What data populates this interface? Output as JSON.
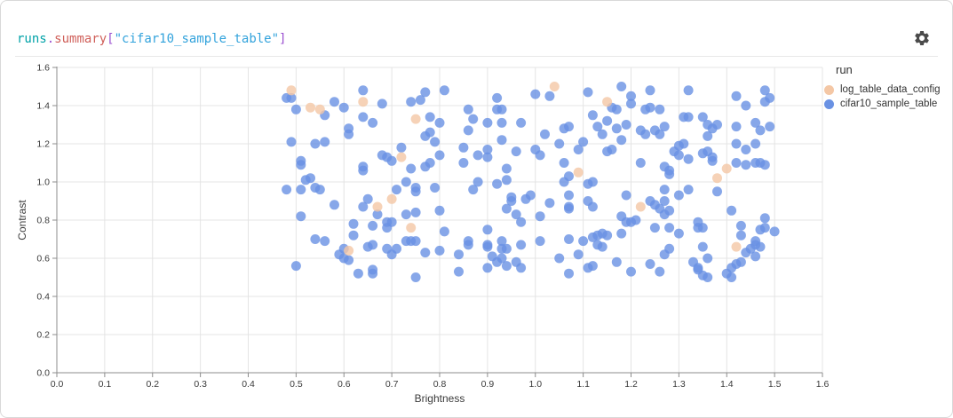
{
  "panel": {
    "title_parts": [
      {
        "text": "runs",
        "color": "#00a2a8"
      },
      {
        "text": ".",
        "color": "#9b51d0"
      },
      {
        "text": "summary",
        "color": "#d0605a"
      },
      {
        "text": "[",
        "color": "#9b51d0"
      },
      {
        "text": "\"cifar10_sample_table\"",
        "color": "#33a3dc"
      },
      {
        "text": "]",
        "color": "#9b51d0"
      }
    ],
    "gear_icon": "settings-gear",
    "gear_color": "#4b4b4b"
  },
  "colors": {
    "grid": "#e4e4e4",
    "axis": "#8c8c8c",
    "tick_text": "#3b3b3b",
    "border": "#d9d9d9"
  },
  "chart_data": {
    "type": "scatter",
    "title": "runs.summary[\"cifar10_sample_table\"]",
    "xlabel": "Brightness",
    "ylabel": "Contrast",
    "xlim": [
      0,
      1.6
    ],
    "ylim": [
      0,
      1.6
    ],
    "xticks": [
      0,
      0.1,
      0.2,
      0.3,
      0.4,
      0.5,
      0.6,
      0.7,
      0.8,
      0.9,
      1,
      1.1,
      1.2,
      1.3,
      1.4,
      1.5,
      1.6
    ],
    "yticks": [
      0,
      0.2,
      0.4,
      0.6,
      0.8,
      1,
      1.2,
      1.4,
      1.6
    ],
    "grid": true,
    "legend_position": "right",
    "legend_title": "run",
    "point_radius": 5.5,
    "point_opacity": 0.8,
    "series": [
      {
        "name": "log_table_data_config",
        "color": "#f4c7a5",
        "points": [
          [
            0.49,
            1.48
          ],
          [
            0.53,
            1.39
          ],
          [
            0.55,
            1.38
          ],
          [
            0.64,
            1.42
          ],
          [
            0.75,
            1.33
          ],
          [
            0.72,
            1.13
          ],
          [
            1.04,
            1.5
          ],
          [
            1.15,
            1.42
          ],
          [
            1.09,
            1.05
          ],
          [
            1.4,
            1.07
          ],
          [
            1.38,
            1.02
          ],
          [
            0.67,
            0.87
          ],
          [
            0.7,
            0.91
          ],
          [
            0.74,
            0.76
          ],
          [
            0.61,
            0.64
          ],
          [
            1.22,
            0.87
          ],
          [
            1.42,
            0.66
          ]
        ]
      },
      {
        "name": "cifar10_sample_table",
        "color": "#6991e3",
        "points": [
          [
            0.48,
            1.44
          ],
          [
            0.49,
            1.44
          ],
          [
            0.5,
            1.38
          ],
          [
            0.56,
            1.35
          ],
          [
            0.58,
            1.42
          ],
          [
            0.6,
            1.39
          ],
          [
            0.64,
            1.48
          ],
          [
            0.68,
            1.41
          ],
          [
            0.64,
            1.34
          ],
          [
            0.66,
            1.31
          ],
          [
            0.61,
            1.28
          ],
          [
            0.61,
            1.25
          ],
          [
            0.74,
            1.42
          ],
          [
            0.77,
            1.47
          ],
          [
            0.81,
            1.48
          ],
          [
            0.76,
            1.43
          ],
          [
            0.78,
            1.34
          ],
          [
            0.8,
            1.31
          ],
          [
            0.78,
            1.26
          ],
          [
            0.77,
            1.24
          ],
          [
            0.79,
            1.21
          ],
          [
            0.49,
            1.21
          ],
          [
            0.54,
            1.2
          ],
          [
            0.56,
            1.21
          ],
          [
            0.72,
            1.18
          ],
          [
            0.68,
            1.14
          ],
          [
            0.69,
            1.13
          ],
          [
            0.7,
            1.11
          ],
          [
            0.64,
            1.08
          ],
          [
            0.64,
            1.06
          ],
          [
            0.51,
            1.11
          ],
          [
            0.51,
            1.09
          ],
          [
            0.53,
            1.02
          ],
          [
            0.74,
            1.07
          ],
          [
            0.77,
            1.08
          ],
          [
            0.78,
            1.1
          ],
          [
            0.8,
            1.14
          ],
          [
            0.85,
            1.18
          ],
          [
            0.85,
            1.1
          ],
          [
            1.0,
            1.46
          ],
          [
            1.03,
            1.45
          ],
          [
            0.92,
            1.44
          ],
          [
            0.92,
            1.38
          ],
          [
            0.93,
            1.38
          ],
          [
            0.86,
            1.38
          ],
          [
            0.87,
            1.33
          ],
          [
            0.86,
            1.27
          ],
          [
            0.9,
            1.31
          ],
          [
            0.93,
            1.31
          ],
          [
            0.97,
            1.31
          ],
          [
            0.93,
            1.22
          ],
          [
            1.11,
            1.47
          ],
          [
            1.18,
            1.5
          ],
          [
            1.2,
            1.45
          ],
          [
            1.2,
            1.41
          ],
          [
            1.16,
            1.39
          ],
          [
            1.17,
            1.38
          ],
          [
            1.12,
            1.35
          ],
          [
            1.13,
            1.29
          ],
          [
            1.15,
            1.32
          ],
          [
            1.14,
            1.25
          ],
          [
            1.17,
            1.28
          ],
          [
            1.19,
            1.3
          ],
          [
            1.23,
            1.38
          ],
          [
            1.22,
            1.27
          ],
          [
            1.23,
            1.25
          ],
          [
            1.06,
            1.28
          ],
          [
            1.07,
            1.29
          ],
          [
            1.02,
            1.25
          ],
          [
            1.05,
            1.2
          ],
          [
            1.1,
            1.21
          ],
          [
            1.09,
            1.17
          ],
          [
            1.0,
            1.17
          ],
          [
            1.01,
            1.14
          ],
          [
            0.9,
            1.17
          ],
          [
            0.9,
            1.13
          ],
          [
            0.88,
            1.14
          ],
          [
            0.96,
            1.16
          ],
          [
            0.94,
            1.07
          ],
          [
            1.06,
            1.1
          ],
          [
            1.07,
            1.03
          ],
          [
            1.15,
            1.16
          ],
          [
            1.16,
            1.17
          ],
          [
            1.18,
            1.22
          ],
          [
            1.22,
            1.1
          ],
          [
            1.24,
            1.48
          ],
          [
            1.32,
            1.48
          ],
          [
            1.42,
            1.45
          ],
          [
            1.44,
            1.4
          ],
          [
            1.48,
            1.48
          ],
          [
            1.49,
            1.44
          ],
          [
            1.48,
            1.42
          ],
          [
            1.24,
            1.39
          ],
          [
            1.26,
            1.38
          ],
          [
            1.25,
            1.27
          ],
          [
            1.26,
            1.25
          ],
          [
            1.27,
            1.29
          ],
          [
            1.31,
            1.34
          ],
          [
            1.32,
            1.34
          ],
          [
            1.35,
            1.34
          ],
          [
            1.36,
            1.3
          ],
          [
            1.38,
            1.3
          ],
          [
            1.37,
            1.28
          ],
          [
            1.36,
            1.24
          ],
          [
            1.42,
            1.29
          ],
          [
            1.42,
            1.2
          ],
          [
            1.44,
            1.17
          ],
          [
            1.46,
            1.31
          ],
          [
            1.47,
            1.27
          ],
          [
            1.49,
            1.29
          ],
          [
            1.46,
            1.2
          ],
          [
            1.3,
            1.19
          ],
          [
            1.31,
            1.2
          ],
          [
            1.29,
            1.16
          ],
          [
            1.3,
            1.14
          ],
          [
            1.32,
            1.12
          ],
          [
            1.35,
            1.15
          ],
          [
            1.36,
            1.16
          ],
          [
            1.37,
            1.13
          ],
          [
            1.37,
            1.11
          ],
          [
            1.27,
            1.08
          ],
          [
            1.28,
            1.06
          ],
          [
            1.28,
            1.04
          ],
          [
            1.42,
            1.1
          ],
          [
            1.44,
            1.09
          ],
          [
            1.46,
            1.1
          ],
          [
            1.47,
            1.1
          ],
          [
            1.48,
            1.09
          ],
          [
            0.51,
            0.96
          ],
          [
            0.54,
            0.97
          ],
          [
            0.55,
            0.96
          ],
          [
            0.52,
            1.01
          ],
          [
            0.48,
            0.96
          ],
          [
            0.58,
            0.88
          ],
          [
            0.51,
            0.82
          ],
          [
            0.64,
            0.87
          ],
          [
            0.65,
            0.91
          ],
          [
            0.67,
            0.83
          ],
          [
            0.71,
            0.96
          ],
          [
            0.73,
            1.0
          ],
          [
            0.75,
            0.97
          ],
          [
            0.75,
            0.95
          ],
          [
            0.79,
            0.97
          ],
          [
            0.73,
            0.83
          ],
          [
            0.75,
            0.84
          ],
          [
            0.8,
            0.85
          ],
          [
            0.62,
            0.78
          ],
          [
            0.66,
            0.77
          ],
          [
            0.69,
            0.79
          ],
          [
            0.7,
            0.79
          ],
          [
            0.69,
            0.76
          ],
          [
            0.81,
            0.74
          ],
          [
            0.54,
            0.7
          ],
          [
            0.56,
            0.69
          ],
          [
            0.62,
            0.72
          ],
          [
            0.6,
            0.65
          ],
          [
            0.65,
            0.66
          ],
          [
            0.66,
            0.67
          ],
          [
            0.69,
            0.65
          ],
          [
            0.7,
            0.62
          ],
          [
            0.71,
            0.65
          ],
          [
            0.73,
            0.69
          ],
          [
            0.74,
            0.69
          ],
          [
            0.75,
            0.69
          ],
          [
            0.59,
            0.62
          ],
          [
            0.6,
            0.6
          ],
          [
            0.61,
            0.59
          ],
          [
            0.5,
            0.56
          ],
          [
            0.63,
            0.52
          ],
          [
            0.66,
            0.52
          ],
          [
            0.66,
            0.54
          ],
          [
            0.75,
            0.5
          ],
          [
            0.84,
            0.53
          ],
          [
            0.84,
            0.62
          ],
          [
            0.8,
            0.64
          ],
          [
            0.77,
            0.63
          ],
          [
            0.87,
            0.96
          ],
          [
            0.88,
            1.0
          ],
          [
            0.92,
            0.99
          ],
          [
            0.94,
            1.01
          ],
          [
            0.95,
            0.9
          ],
          [
            0.95,
            0.92
          ],
          [
            0.94,
            0.86
          ],
          [
            0.96,
            0.83
          ],
          [
            0.99,
            0.93
          ],
          [
            0.98,
            0.91
          ],
          [
            1.01,
            0.82
          ],
          [
            1.03,
            0.89
          ],
          [
            1.06,
            1.0
          ],
          [
            1.07,
            0.93
          ],
          [
            1.07,
            0.87
          ],
          [
            1.07,
            0.86
          ],
          [
            1.11,
            0.99
          ],
          [
            1.12,
            1.0
          ],
          [
            1.11,
            0.9
          ],
          [
            1.12,
            0.87
          ],
          [
            0.97,
            0.79
          ],
          [
            0.9,
            0.75
          ],
          [
            0.86,
            0.69
          ],
          [
            0.86,
            0.67
          ],
          [
            0.9,
            0.66
          ],
          [
            0.9,
            0.67
          ],
          [
            0.93,
            0.69
          ],
          [
            0.94,
            0.65
          ],
          [
            0.93,
            0.65
          ],
          [
            0.97,
            0.67
          ],
          [
            1.01,
            0.69
          ],
          [
            1.07,
            0.7
          ],
          [
            1.1,
            0.69
          ],
          [
            1.12,
            0.71
          ],
          [
            1.13,
            0.72
          ],
          [
            1.14,
            0.73
          ],
          [
            1.15,
            0.72
          ],
          [
            1.13,
            0.67
          ],
          [
            1.14,
            0.66
          ],
          [
            1.18,
            0.82
          ],
          [
            1.19,
            0.79
          ],
          [
            1.2,
            0.79
          ],
          [
            1.21,
            0.8
          ],
          [
            1.19,
            0.93
          ],
          [
            1.18,
            0.73
          ],
          [
            0.91,
            0.61
          ],
          [
            0.92,
            0.58
          ],
          [
            0.93,
            0.6
          ],
          [
            0.94,
            0.56
          ],
          [
            0.96,
            0.58
          ],
          [
            0.97,
            0.55
          ],
          [
            0.9,
            0.55
          ],
          [
            1.05,
            0.6
          ],
          [
            1.09,
            0.62
          ],
          [
            1.11,
            0.55
          ],
          [
            1.12,
            0.56
          ],
          [
            1.07,
            0.52
          ],
          [
            1.17,
            0.58
          ],
          [
            1.2,
            0.53
          ],
          [
            1.27,
            0.96
          ],
          [
            1.32,
            0.96
          ],
          [
            1.3,
            0.93
          ],
          [
            1.38,
            0.95
          ],
          [
            1.24,
            0.9
          ],
          [
            1.25,
            0.88
          ],
          [
            1.27,
            0.9
          ],
          [
            1.26,
            0.86
          ],
          [
            1.27,
            0.83
          ],
          [
            1.28,
            0.85
          ],
          [
            1.41,
            0.85
          ],
          [
            1.25,
            0.76
          ],
          [
            1.28,
            0.76
          ],
          [
            1.3,
            0.73
          ],
          [
            1.34,
            0.79
          ],
          [
            1.34,
            0.76
          ],
          [
            1.35,
            0.76
          ],
          [
            1.43,
            0.77
          ],
          [
            1.43,
            0.72
          ],
          [
            1.48,
            0.81
          ],
          [
            1.48,
            0.76
          ],
          [
            1.47,
            0.75
          ],
          [
            1.5,
            0.74
          ],
          [
            1.44,
            0.63
          ],
          [
            1.45,
            0.65
          ],
          [
            1.46,
            0.67
          ],
          [
            1.46,
            0.69
          ],
          [
            1.47,
            0.66
          ],
          [
            1.46,
            0.61
          ],
          [
            1.35,
            0.66
          ],
          [
            1.36,
            0.6
          ],
          [
            1.28,
            0.65
          ],
          [
            1.27,
            0.62
          ],
          [
            1.33,
            0.58
          ],
          [
            1.34,
            0.55
          ],
          [
            1.34,
            0.54
          ],
          [
            1.24,
            0.57
          ],
          [
            1.26,
            0.53
          ],
          [
            1.35,
            0.51
          ],
          [
            1.36,
            0.5
          ],
          [
            1.41,
            0.55
          ],
          [
            1.42,
            0.57
          ],
          [
            1.43,
            0.58
          ],
          [
            1.4,
            0.52
          ],
          [
            1.41,
            0.5
          ]
        ]
      }
    ]
  }
}
